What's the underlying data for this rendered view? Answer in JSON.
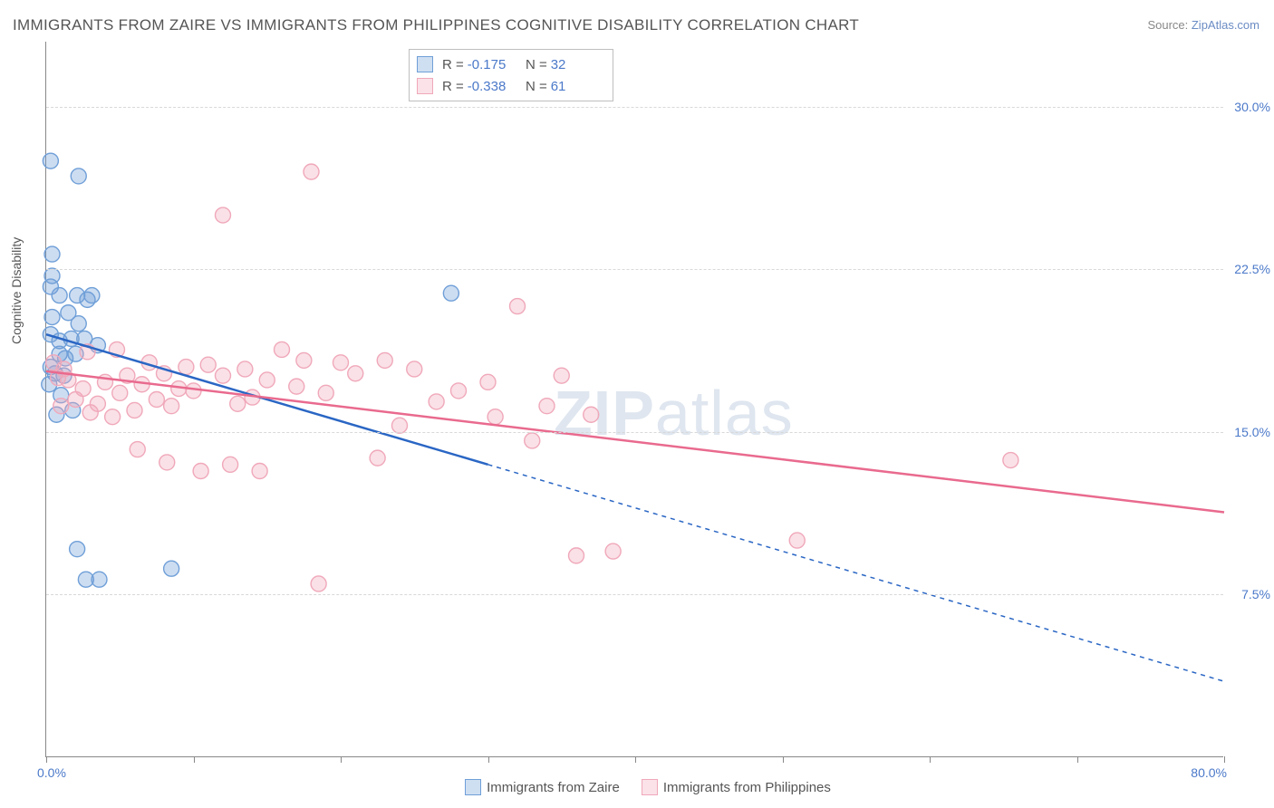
{
  "title": "IMMIGRANTS FROM ZAIRE VS IMMIGRANTS FROM PHILIPPINES COGNITIVE DISABILITY CORRELATION CHART",
  "source_prefix": "Source: ",
  "source_name": "ZipAtlas.com",
  "watermark_bold": "ZIP",
  "watermark_light": "atlas",
  "chart": {
    "type": "scatter",
    "background_color": "#ffffff",
    "grid_color": "#d8d8d8",
    "axis_color": "#888888",
    "tick_label_color": "#4b79c9",
    "xlim": [
      0,
      80
    ],
    "ylim": [
      0,
      33
    ],
    "ylabel": "Cognitive Disability",
    "x_origin_label": "0.0%",
    "x_max_label": "80.0%",
    "y_ticks": [
      {
        "value": 7.5,
        "label": "7.5%"
      },
      {
        "value": 15.0,
        "label": "15.0%"
      },
      {
        "value": 22.5,
        "label": "22.5%"
      },
      {
        "value": 30.0,
        "label": "30.0%"
      }
    ],
    "x_tick_positions": [
      0,
      10,
      20,
      30,
      40,
      50,
      60,
      70,
      80
    ],
    "marker_radius": 8.5,
    "marker_fill_opacity": 0.35,
    "marker_stroke_width": 1.4,
    "line_width": 2.5,
    "dash_pattern": "5,5"
  },
  "series": [
    {
      "name": "Immigrants from Zaire",
      "color": "#6f9fd8",
      "line_color": "#2a66c4",
      "R": "-0.175",
      "N": "32",
      "trend": {
        "x1": 0,
        "y1": 19.5,
        "x2": 30,
        "y2": 13.5,
        "extend_to": 80,
        "y_extend": 3.5
      },
      "points": [
        [
          0.3,
          27.5
        ],
        [
          2.2,
          26.8
        ],
        [
          0.4,
          23.2
        ],
        [
          0.4,
          22.2
        ],
        [
          0.3,
          21.7
        ],
        [
          0.9,
          21.3
        ],
        [
          2.1,
          21.3
        ],
        [
          2.8,
          21.1
        ],
        [
          3.1,
          21.3
        ],
        [
          0.4,
          20.3
        ],
        [
          1.5,
          20.5
        ],
        [
          2.2,
          20.0
        ],
        [
          0.3,
          19.5
        ],
        [
          0.9,
          19.2
        ],
        [
          1.7,
          19.3
        ],
        [
          2.6,
          19.3
        ],
        [
          3.5,
          19.0
        ],
        [
          0.9,
          18.6
        ],
        [
          1.3,
          18.4
        ],
        [
          2.0,
          18.6
        ],
        [
          0.3,
          18.0
        ],
        [
          0.6,
          17.7
        ],
        [
          1.2,
          17.6
        ],
        [
          0.2,
          17.2
        ],
        [
          1.0,
          16.7
        ],
        [
          1.8,
          16.0
        ],
        [
          0.7,
          15.8
        ],
        [
          27.5,
          21.4
        ],
        [
          2.1,
          9.6
        ],
        [
          2.7,
          8.2
        ],
        [
          3.6,
          8.2
        ],
        [
          8.5,
          8.7
        ]
      ]
    },
    {
      "name": "Immigrants from Philippines",
      "color": "#f0a8ba",
      "line_color": "#e96a8e",
      "R": "-0.338",
      "N": "61",
      "trend": {
        "x1": 0,
        "y1": 17.8,
        "x2": 80,
        "y2": 11.3,
        "extend_to": 80,
        "y_extend": 11.3
      },
      "points": [
        [
          18.0,
          27.0
        ],
        [
          12.0,
          25.0
        ],
        [
          32.0,
          20.8
        ],
        [
          35.0,
          17.6
        ],
        [
          37.0,
          15.8
        ],
        [
          28.0,
          16.9
        ],
        [
          30.0,
          17.3
        ],
        [
          25.0,
          17.9
        ],
        [
          23.0,
          18.3
        ],
        [
          21.0,
          17.7
        ],
        [
          20.0,
          18.2
        ],
        [
          19.0,
          16.8
        ],
        [
          17.5,
          18.3
        ],
        [
          17.0,
          17.1
        ],
        [
          16.0,
          18.8
        ],
        [
          15.0,
          17.4
        ],
        [
          14.0,
          16.6
        ],
        [
          13.5,
          17.9
        ],
        [
          13.0,
          16.3
        ],
        [
          12.0,
          17.6
        ],
        [
          11.0,
          18.1
        ],
        [
          10.0,
          16.9
        ],
        [
          9.5,
          18.0
        ],
        [
          9.0,
          17.0
        ],
        [
          8.5,
          16.2
        ],
        [
          8.0,
          17.7
        ],
        [
          7.5,
          16.5
        ],
        [
          7.0,
          18.2
        ],
        [
          6.5,
          17.2
        ],
        [
          6.0,
          16.0
        ],
        [
          5.5,
          17.6
        ],
        [
          5.0,
          16.8
        ],
        [
          4.5,
          15.7
        ],
        [
          4.0,
          17.3
        ],
        [
          3.5,
          16.3
        ],
        [
          3.0,
          15.9
        ],
        [
          2.5,
          17.0
        ],
        [
          2.0,
          16.5
        ],
        [
          1.5,
          17.4
        ],
        [
          1.0,
          16.2
        ],
        [
          0.5,
          18.2
        ],
        [
          0.8,
          17.5
        ],
        [
          1.2,
          17.9
        ],
        [
          10.5,
          13.2
        ],
        [
          12.5,
          13.5
        ],
        [
          14.5,
          13.2
        ],
        [
          8.2,
          13.6
        ],
        [
          6.2,
          14.2
        ],
        [
          22.5,
          13.8
        ],
        [
          24.0,
          15.3
        ],
        [
          26.5,
          16.4
        ],
        [
          34.0,
          16.2
        ],
        [
          30.5,
          15.7
        ],
        [
          33.0,
          14.6
        ],
        [
          18.5,
          8.0
        ],
        [
          36.0,
          9.3
        ],
        [
          38.5,
          9.5
        ],
        [
          51.0,
          10.0
        ],
        [
          65.5,
          13.7
        ],
        [
          4.8,
          18.8
        ],
        [
          2.8,
          18.7
        ]
      ]
    }
  ],
  "bottom_legend": {
    "items": [
      {
        "label": "Immigrants from Zaire",
        "color": "#6f9fd8"
      },
      {
        "label": "Immigrants from Philippines",
        "color": "#f0a8ba"
      }
    ]
  },
  "stat_labels": {
    "R": "R =",
    "N": "N ="
  }
}
